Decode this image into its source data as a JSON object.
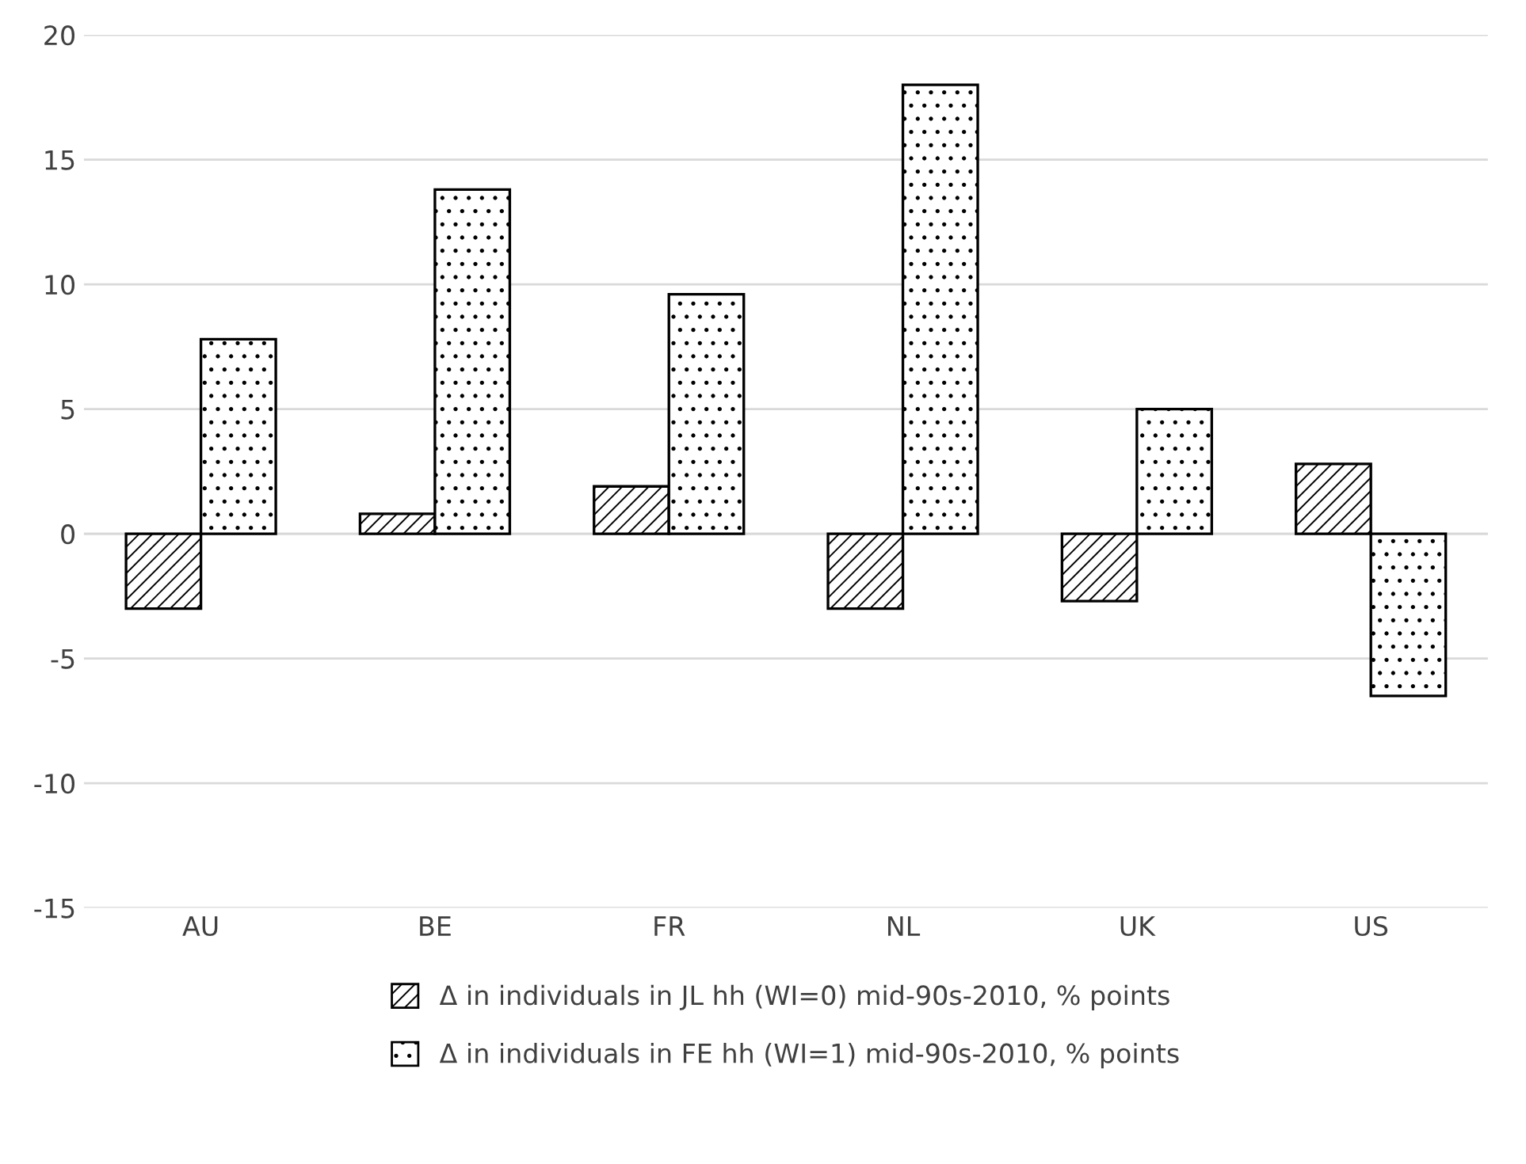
{
  "chart_data": {
    "type": "bar",
    "categories": [
      "AU",
      "BE",
      "FR",
      "NL",
      "UK",
      "US"
    ],
    "series": [
      {
        "name": "Δ in individuals in JL hh (WI=0) mid-90s-2010, % points",
        "color": "#000000",
        "values": [
          -3.0,
          0.8,
          1.9,
          -3.0,
          -2.7,
          2.8
        ]
      },
      {
        "name": "Δ in individuals in FE hh (WI=1) mid-90s-2010, % points",
        "color": "#000000",
        "values": [
          7.8,
          13.8,
          9.6,
          18.0,
          5.0,
          -6.5
        ]
      }
    ],
    "ylim": [
      -15,
      20
    ],
    "yticks": [
      -15,
      -10,
      -5,
      0,
      5,
      10,
      15,
      20
    ],
    "grid": "y",
    "legend": "bottom"
  }
}
